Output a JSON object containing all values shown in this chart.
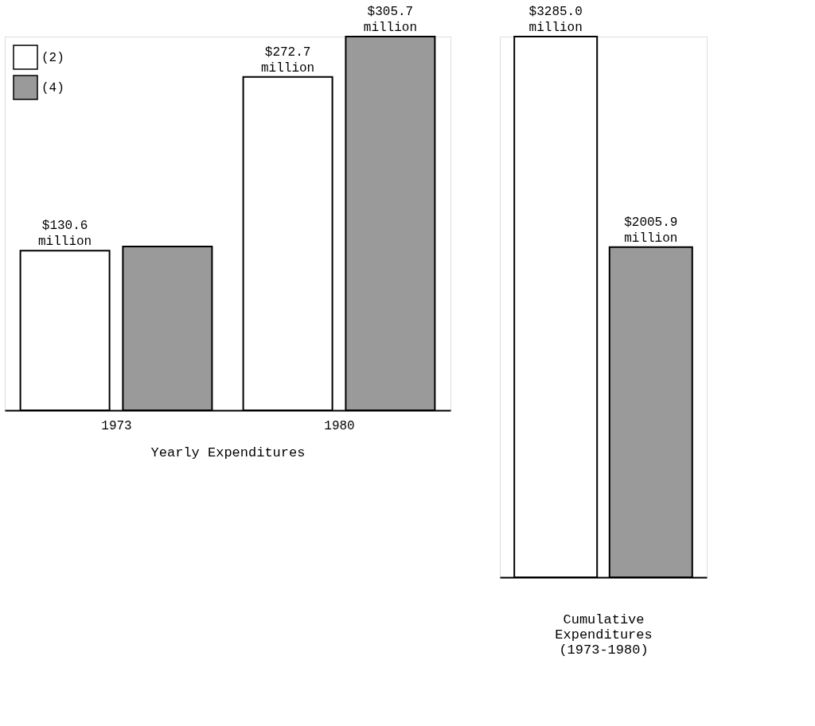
{
  "chart_data": [
    {
      "type": "bar",
      "categories": [
        "1973",
        "1980"
      ],
      "xlabel": "Yearly Expenditures",
      "legend": "top left",
      "series": [
        {
          "name": "(2)",
          "color": "#ffffff",
          "values": [
            130.6,
            272.7
          ],
          "value_labels": [
            "$130.6 million",
            "$272.7 million"
          ]
        },
        {
          "name": "(4)",
          "color": "#9a9a9a",
          "values": [
            134,
            305.7
          ],
          "value_labels": [
            null,
            "$305.7 million"
          ]
        }
      ]
    },
    {
      "type": "bar",
      "categories": [
        null
      ],
      "xlabel": "Cumulative Expenditures (1973-1980)",
      "legend": false,
      "series": [
        {
          "color": "#ffffff",
          "values": [
            3285.0
          ],
          "value_labels": [
            "$3285.0 million"
          ]
        },
        {
          "color": "#9a9a9a",
          "values": [
            2005.9
          ],
          "value_labels": [
            "$2005.9 million"
          ]
        }
      ]
    }
  ]
}
